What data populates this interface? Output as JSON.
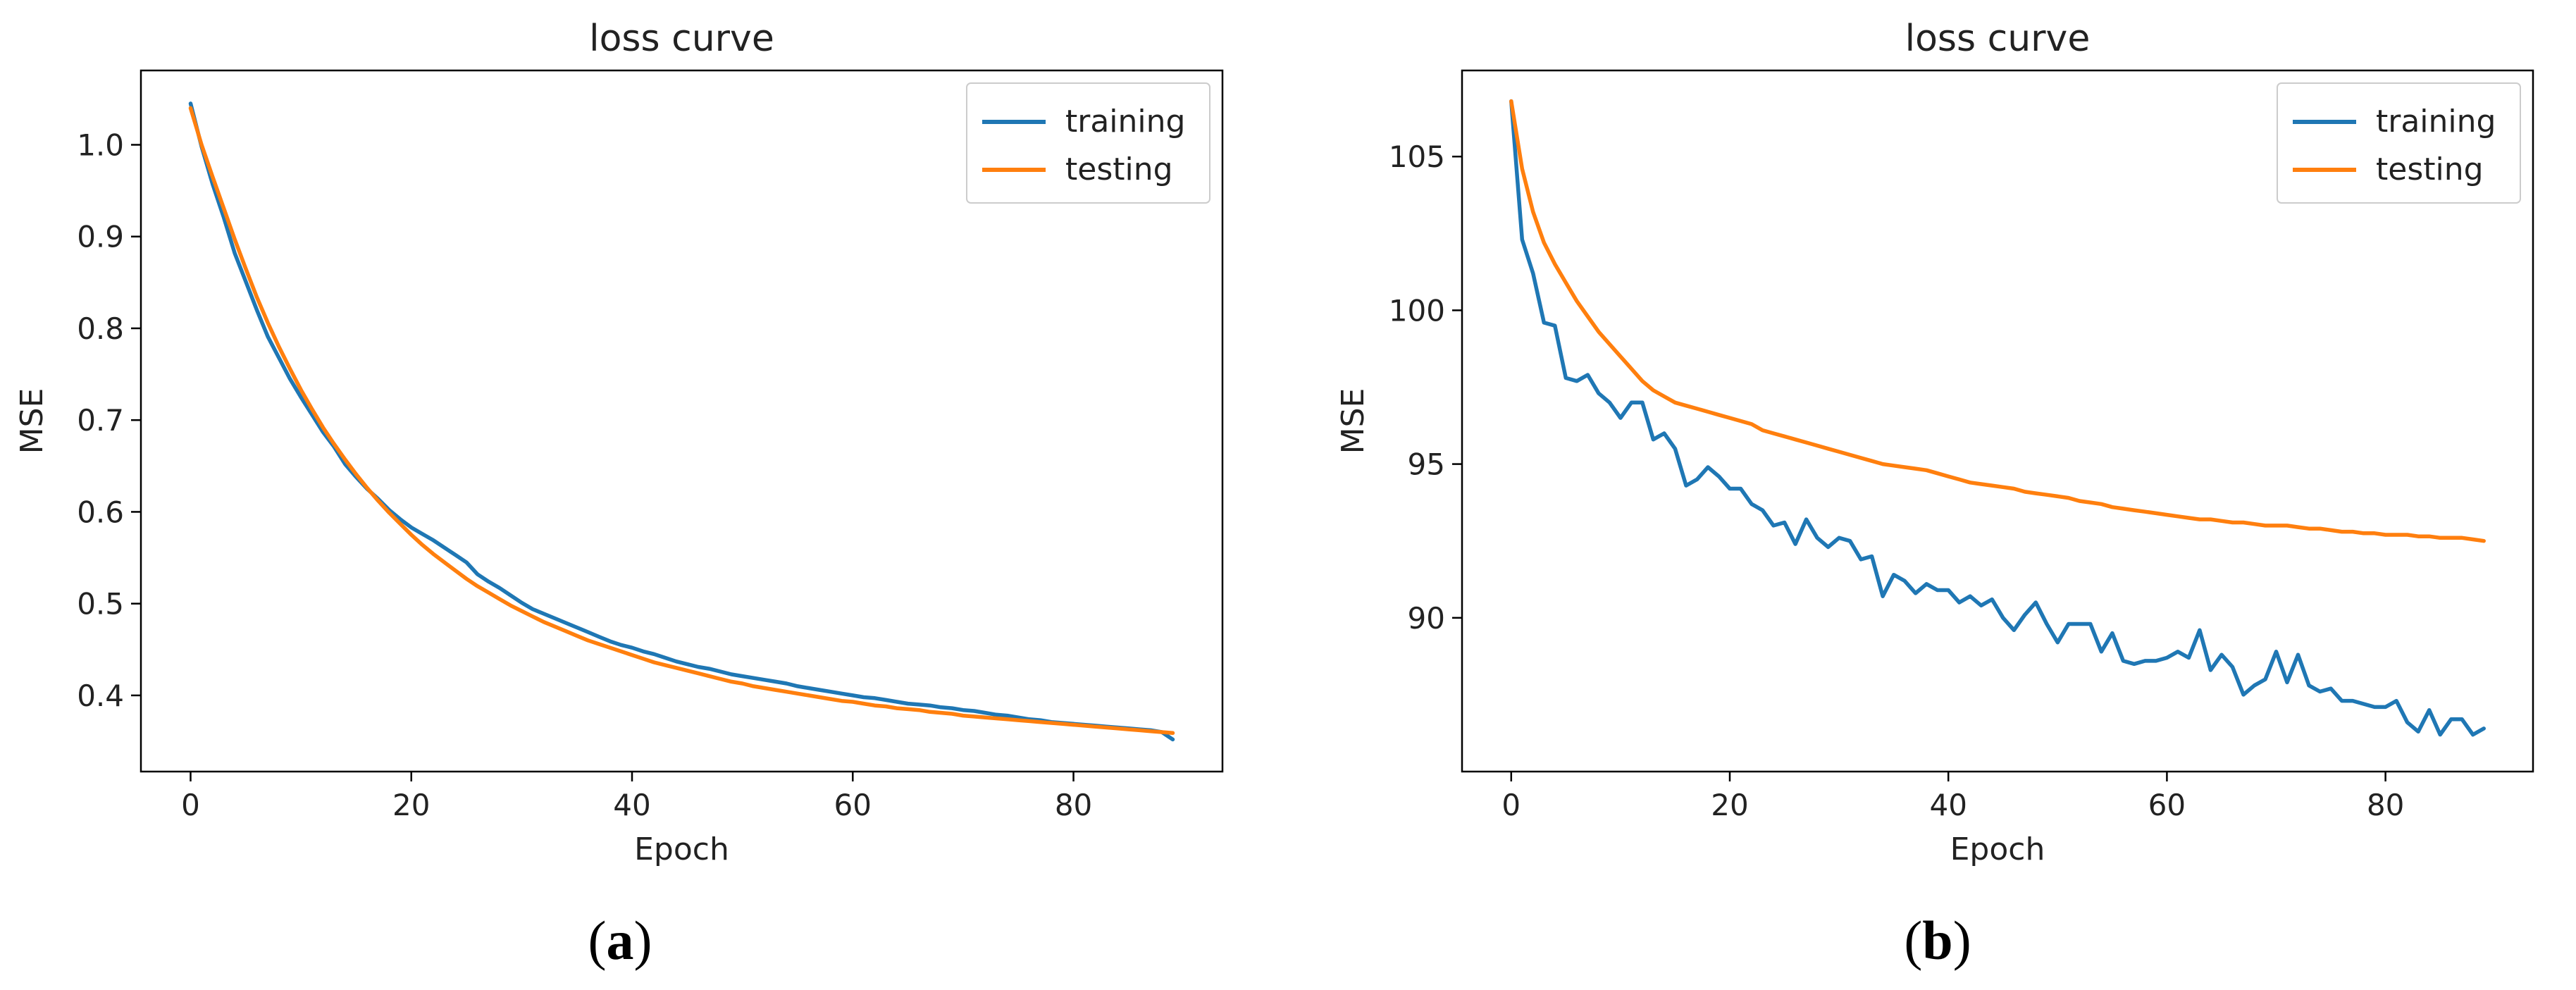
{
  "colors": {
    "training": "#1f77b4",
    "testing": "#ff7f0e",
    "axis": "#000000"
  },
  "captions": [
    {
      "open": "(",
      "letter": "a",
      "close": ")"
    },
    {
      "open": "(",
      "letter": "b",
      "close": ")"
    }
  ],
  "chart_data": [
    {
      "type": "line",
      "title": "loss curve",
      "xlabel": "Epoch",
      "ylabel": "MSE",
      "xlim": [
        -4.5,
        93.5
      ],
      "ylim": [
        0.317,
        1.081
      ],
      "xticks": [
        0,
        20,
        40,
        60,
        80
      ],
      "xtick_labels": [
        "0",
        "20",
        "40",
        "60",
        "80"
      ],
      "yticks": [
        0.4,
        0.5,
        0.6,
        0.7,
        0.8,
        0.9,
        1.0
      ],
      "ytick_labels": [
        "0.4",
        "0.5",
        "0.6",
        "0.7",
        "0.8",
        "0.9",
        "1.0"
      ],
      "grid": false,
      "legend": "top-right",
      "x": [
        0,
        1,
        2,
        3,
        4,
        5,
        6,
        7,
        8,
        9,
        10,
        11,
        12,
        13,
        14,
        15,
        16,
        17,
        18,
        19,
        20,
        21,
        22,
        23,
        24,
        25,
        26,
        27,
        28,
        29,
        30,
        31,
        32,
        33,
        34,
        35,
        36,
        37,
        38,
        39,
        40,
        41,
        42,
        43,
        44,
        45,
        46,
        47,
        48,
        49,
        50,
        51,
        52,
        53,
        54,
        55,
        56,
        57,
        58,
        59,
        60,
        61,
        62,
        63,
        64,
        65,
        66,
        67,
        68,
        69,
        70,
        71,
        72,
        73,
        74,
        75,
        76,
        77,
        78,
        79,
        80,
        81,
        82,
        83,
        84,
        85,
        86,
        87,
        88,
        89
      ],
      "series": [
        {
          "name": "training",
          "values": [
            1.045,
            0.998,
            0.957,
            0.921,
            0.882,
            0.851,
            0.82,
            0.791,
            0.768,
            0.745,
            0.725,
            0.706,
            0.687,
            0.671,
            0.652,
            0.638,
            0.625,
            0.614,
            0.602,
            0.592,
            0.583,
            0.576,
            0.569,
            0.561,
            0.553,
            0.545,
            0.532,
            0.524,
            0.517,
            0.509,
            0.501,
            0.494,
            0.489,
            0.484,
            0.479,
            0.474,
            0.469,
            0.464,
            0.459,
            0.455,
            0.452,
            0.448,
            0.445,
            0.441,
            0.437,
            0.434,
            0.431,
            0.429,
            0.426,
            0.423,
            0.421,
            0.419,
            0.417,
            0.415,
            0.413,
            0.41,
            0.408,
            0.406,
            0.404,
            0.402,
            0.4,
            0.398,
            0.397,
            0.395,
            0.393,
            0.391,
            0.39,
            0.389,
            0.387,
            0.386,
            0.384,
            0.383,
            0.381,
            0.379,
            0.378,
            0.376,
            0.374,
            0.373,
            0.371,
            0.37,
            0.369,
            0.368,
            0.367,
            0.366,
            0.365,
            0.364,
            0.363,
            0.362,
            0.36,
            0.352
          ]
        },
        {
          "name": "testing",
          "values": [
            1.04,
            1.0,
            0.965,
            0.931,
            0.897,
            0.865,
            0.834,
            0.806,
            0.78,
            0.756,
            0.733,
            0.712,
            0.692,
            0.674,
            0.657,
            0.641,
            0.626,
            0.612,
            0.599,
            0.587,
            0.575,
            0.564,
            0.554,
            0.545,
            0.536,
            0.527,
            0.519,
            0.512,
            0.505,
            0.498,
            0.492,
            0.486,
            0.48,
            0.475,
            0.47,
            0.465,
            0.46,
            0.456,
            0.452,
            0.448,
            0.444,
            0.44,
            0.436,
            0.433,
            0.43,
            0.427,
            0.424,
            0.421,
            0.418,
            0.415,
            0.413,
            0.41,
            0.408,
            0.406,
            0.404,
            0.402,
            0.4,
            0.398,
            0.396,
            0.394,
            0.393,
            0.391,
            0.389,
            0.388,
            0.386,
            0.385,
            0.384,
            0.382,
            0.381,
            0.38,
            0.378,
            0.377,
            0.376,
            0.375,
            0.374,
            0.373,
            0.372,
            0.371,
            0.37,
            0.369,
            0.368,
            0.367,
            0.366,
            0.365,
            0.364,
            0.363,
            0.362,
            0.361,
            0.36,
            0.359
          ]
        }
      ]
    },
    {
      "type": "line",
      "title": "loss curve",
      "xlabel": "Epoch",
      "ylabel": "MSE",
      "xlim": [
        -4.5,
        93.5
      ],
      "ylim": [
        85.0,
        107.8
      ],
      "xticks": [
        0,
        20,
        40,
        60,
        80
      ],
      "xtick_labels": [
        "0",
        "20",
        "40",
        "60",
        "80"
      ],
      "yticks": [
        90,
        95,
        100,
        105
      ],
      "ytick_labels": [
        "90",
        "95",
        "100",
        "105"
      ],
      "grid": false,
      "legend": "top-right",
      "x": [
        0,
        1,
        2,
        3,
        4,
        5,
        6,
        7,
        8,
        9,
        10,
        11,
        12,
        13,
        14,
        15,
        16,
        17,
        18,
        19,
        20,
        21,
        22,
        23,
        24,
        25,
        26,
        27,
        28,
        29,
        30,
        31,
        32,
        33,
        34,
        35,
        36,
        37,
        38,
        39,
        40,
        41,
        42,
        43,
        44,
        45,
        46,
        47,
        48,
        49,
        50,
        51,
        52,
        53,
        54,
        55,
        56,
        57,
        58,
        59,
        60,
        61,
        62,
        63,
        64,
        65,
        66,
        67,
        68,
        69,
        70,
        71,
        72,
        73,
        74,
        75,
        76,
        77,
        78,
        79,
        80,
        81,
        82,
        83,
        84,
        85,
        86,
        87,
        88,
        89
      ],
      "series": [
        {
          "name": "training",
          "values": [
            106.8,
            102.3,
            101.2,
            99.6,
            99.5,
            97.8,
            97.7,
            97.9,
            97.3,
            97.0,
            96.5,
            97.0,
            97.0,
            95.8,
            96.0,
            95.5,
            94.3,
            94.5,
            94.9,
            94.6,
            94.2,
            94.2,
            93.7,
            93.5,
            93.0,
            93.1,
            92.4,
            93.2,
            92.6,
            92.3,
            92.6,
            92.5,
            91.9,
            92.0,
            90.7,
            91.4,
            91.2,
            90.8,
            91.1,
            90.9,
            90.9,
            90.5,
            90.7,
            90.4,
            90.6,
            90.0,
            89.6,
            90.1,
            90.5,
            89.8,
            89.2,
            89.8,
            89.8,
            89.8,
            88.9,
            89.5,
            88.6,
            88.5,
            88.6,
            88.6,
            88.7,
            88.9,
            88.7,
            89.6,
            88.3,
            88.8,
            88.4,
            87.5,
            87.8,
            88.0,
            88.9,
            87.9,
            88.8,
            87.8,
            87.6,
            87.7,
            87.3,
            87.3,
            87.2,
            87.1,
            87.1,
            87.3,
            86.6,
            86.3,
            87.0,
            86.2,
            86.7,
            86.7,
            86.2,
            86.4
          ]
        },
        {
          "name": "testing",
          "values": [
            106.8,
            104.6,
            103.2,
            102.2,
            101.5,
            100.9,
            100.3,
            99.8,
            99.3,
            98.9,
            98.5,
            98.1,
            97.7,
            97.4,
            97.2,
            97.0,
            96.9,
            96.8,
            96.7,
            96.6,
            96.5,
            96.4,
            96.3,
            96.1,
            96.0,
            95.9,
            95.8,
            95.7,
            95.6,
            95.5,
            95.4,
            95.3,
            95.2,
            95.1,
            95.0,
            94.95,
            94.9,
            94.85,
            94.8,
            94.7,
            94.6,
            94.5,
            94.4,
            94.35,
            94.3,
            94.25,
            94.2,
            94.1,
            94.05,
            94.0,
            93.95,
            93.9,
            93.8,
            93.75,
            93.7,
            93.6,
            93.55,
            93.5,
            93.45,
            93.4,
            93.35,
            93.3,
            93.25,
            93.2,
            93.2,
            93.15,
            93.1,
            93.1,
            93.05,
            93.0,
            93.0,
            93.0,
            92.95,
            92.9,
            92.9,
            92.85,
            92.8,
            92.8,
            92.75,
            92.75,
            92.7,
            92.7,
            92.7,
            92.65,
            92.65,
            92.6,
            92.6,
            92.6,
            92.55,
            92.5
          ]
        }
      ]
    }
  ]
}
